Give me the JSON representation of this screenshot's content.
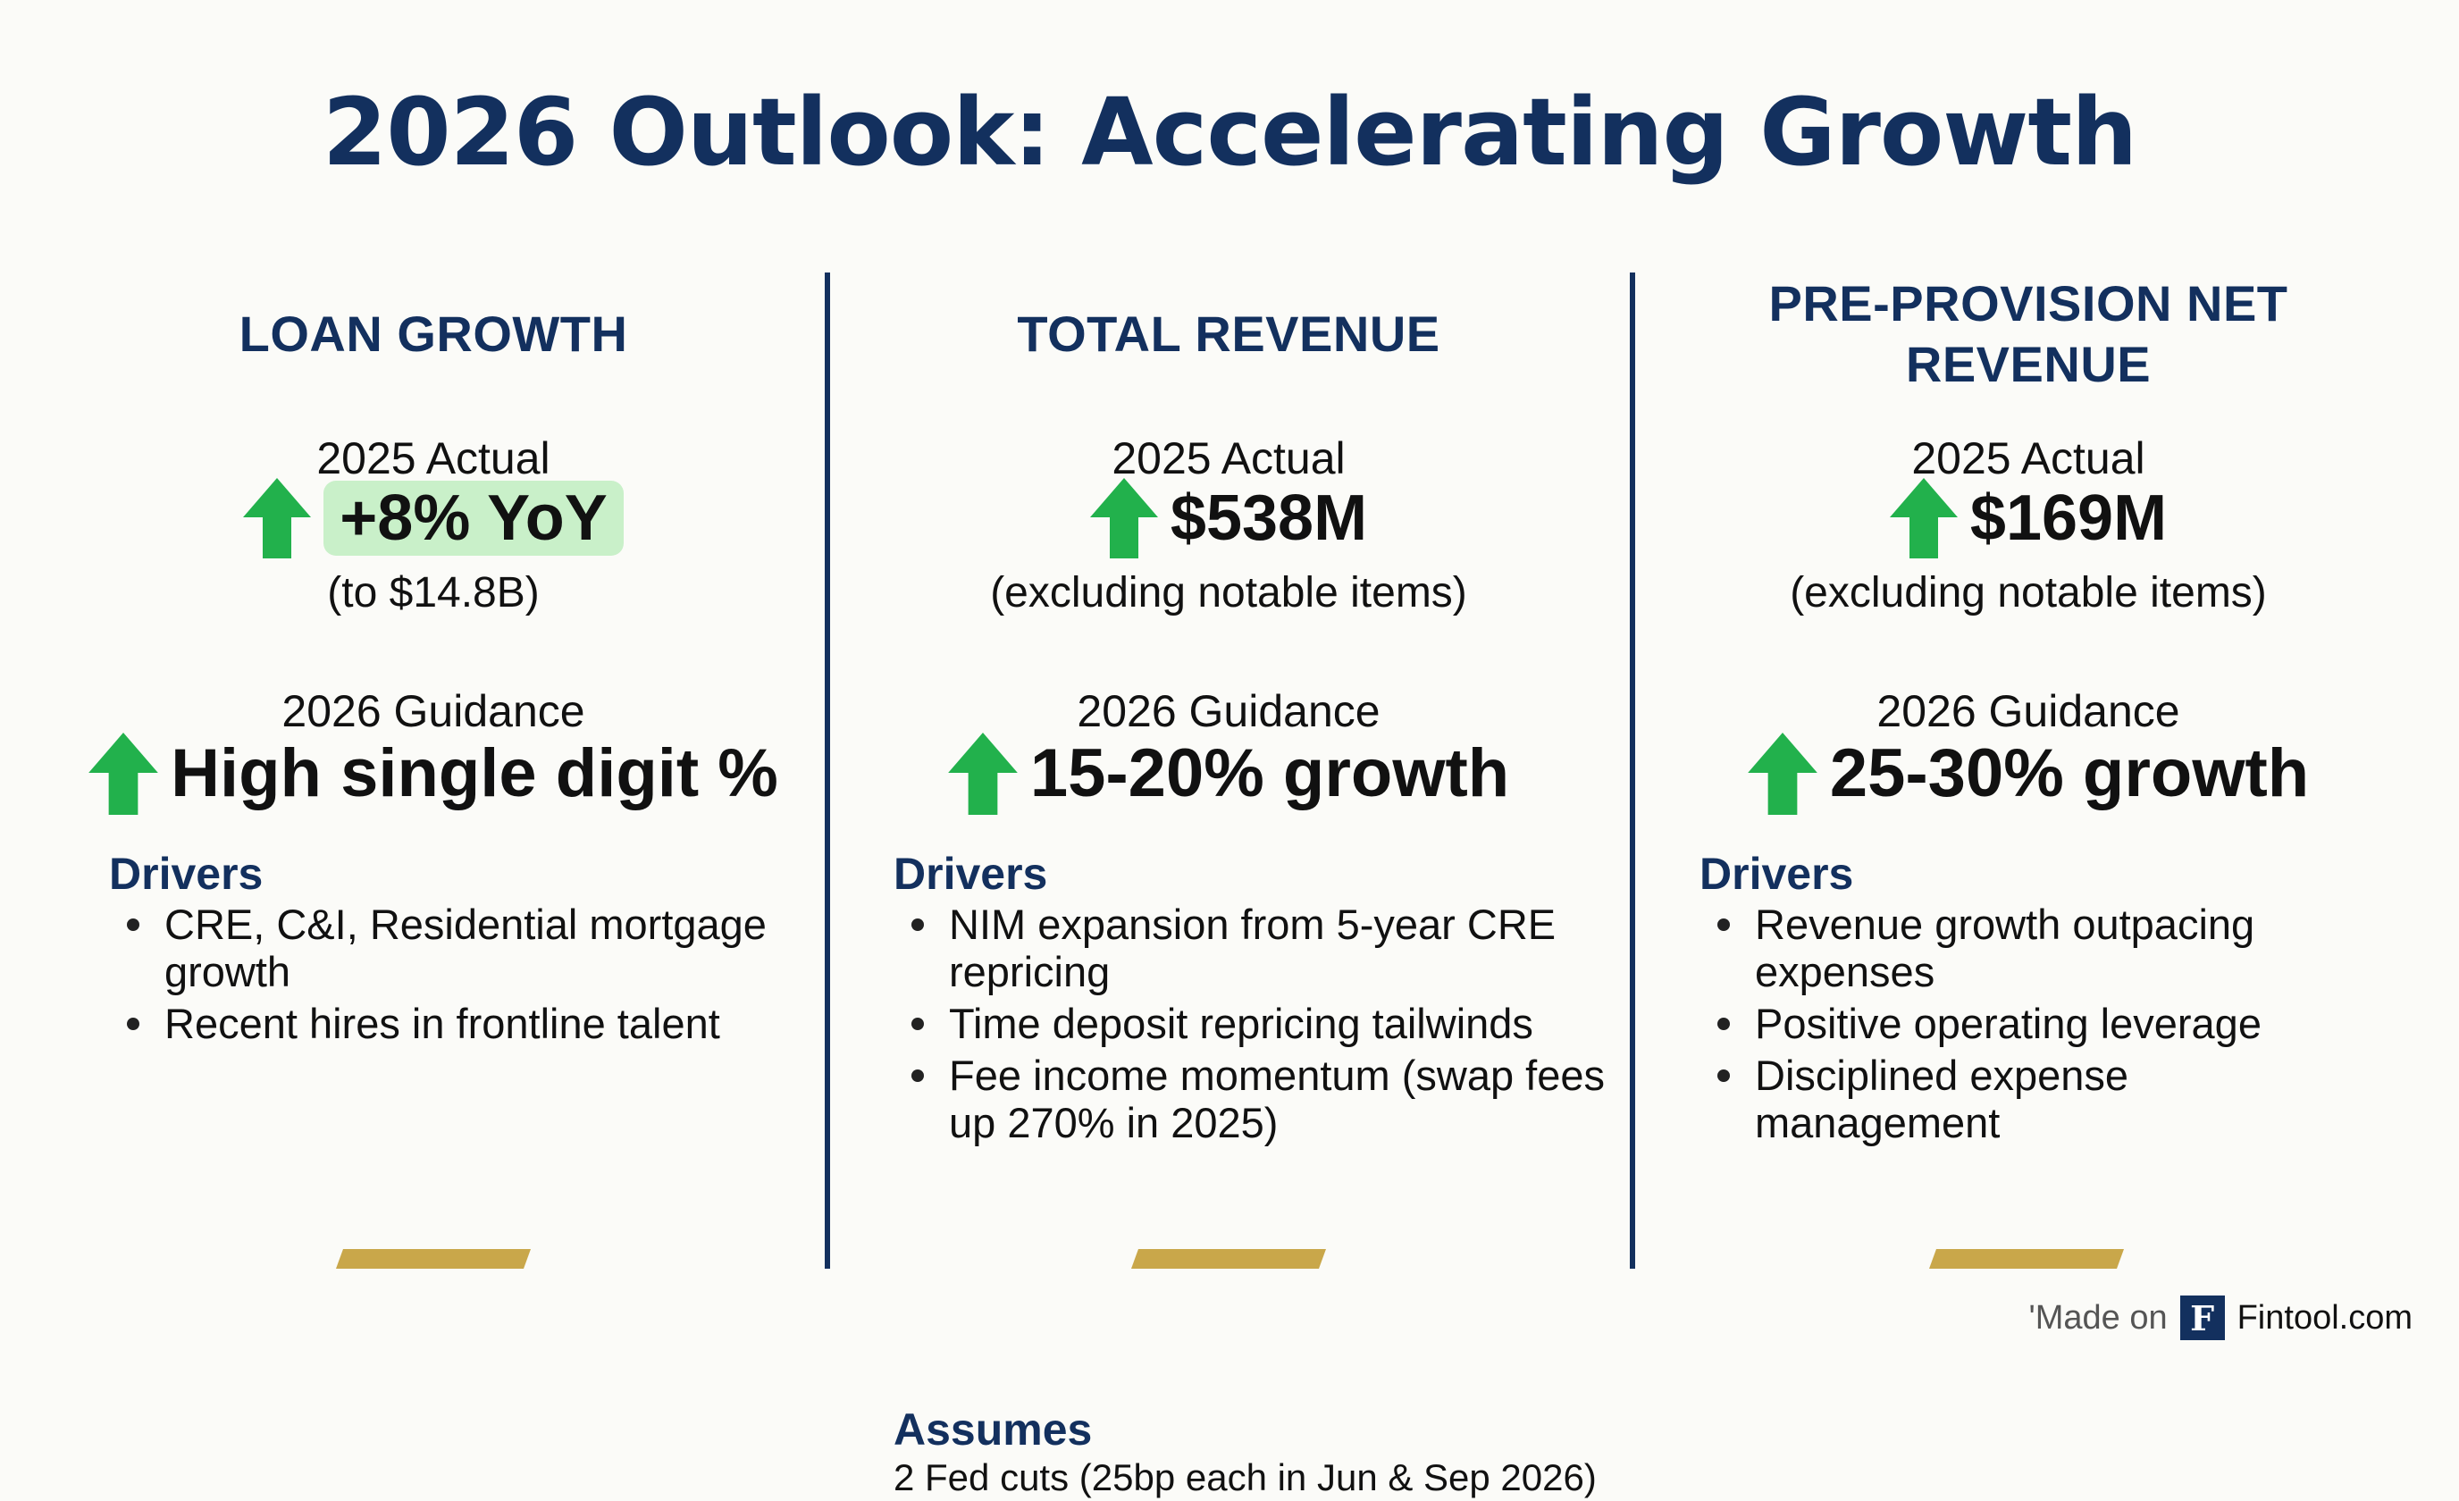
{
  "title": "2026 Outlook: Accelerating Growth",
  "colors": {
    "navy": "#13305e",
    "green_arrow": "#22b14c",
    "highlight": "#c9f0c9",
    "gold": "#c9a74a"
  },
  "columns": [
    {
      "heading": "LOAN GROWTH",
      "actual_label": "2025 Actual",
      "actual_value": "+8% YoY",
      "actual_note": "(to $14.8B)",
      "guidance_label": "2026 Guidance",
      "guidance_value": "High single digit %",
      "drivers_label": "Drivers",
      "drivers": [
        "CRE, C&I, Residential mortgage growth",
        "Recent hires in frontline talent"
      ]
    },
    {
      "heading": "TOTAL REVENUE",
      "actual_label": "2025 Actual",
      "actual_value": "$538M",
      "actual_note": "(excluding notable items)",
      "guidance_label": "2026 Guidance",
      "guidance_value": "15-20% growth",
      "drivers_label": "Drivers",
      "drivers": [
        "NIM expansion from 5-year CRE repricing",
        "Time deposit repricing tailwinds",
        "Fee income momentum (swap fees up 270% in 2025)"
      ],
      "assumes_label": "Assumes",
      "assumes_text": "2 Fed cuts (25bp each in Jun & Sep 2026)"
    },
    {
      "heading": "PRE-PROVISION NET REVENUE",
      "actual_label": "2025 Actual",
      "actual_value": "$169M",
      "actual_note": "(excluding notable items)",
      "guidance_label": "2026 Guidance",
      "guidance_value": "25-30% growth",
      "drivers_label": "Drivers",
      "drivers": [
        "Revenue growth outpacing expenses",
        "Positive operating leverage",
        "Disciplined expense management"
      ]
    }
  ],
  "footer": {
    "made_on": "'Made on",
    "logo_letter": "F",
    "brand": "Fintool.com"
  },
  "icons": {
    "arrow": "up-arrow-icon",
    "logo": "fintool-logo-icon"
  }
}
